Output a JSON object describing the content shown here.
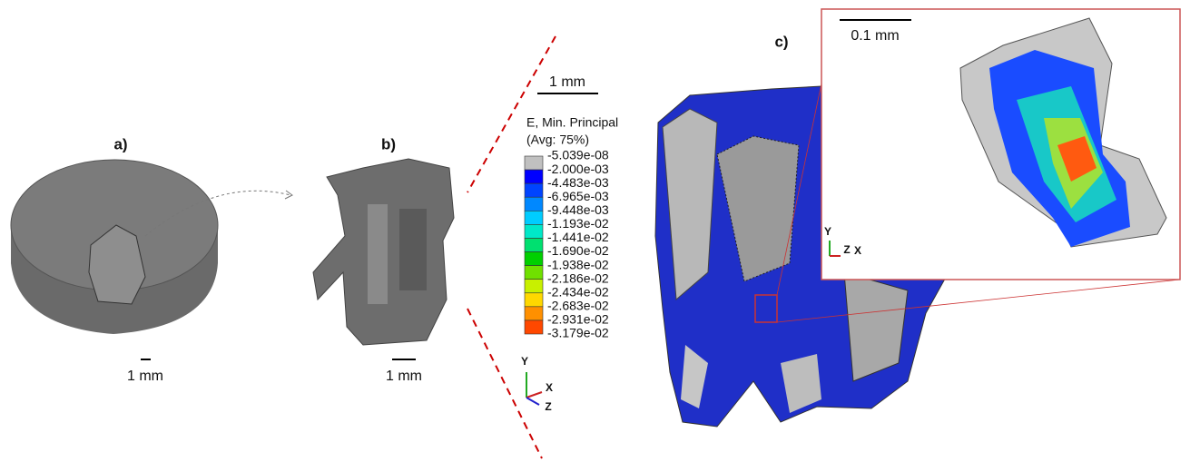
{
  "panels": {
    "a": {
      "label": "a)",
      "scale": "1 mm"
    },
    "b": {
      "label": "b)",
      "scale": "1 mm"
    },
    "c": {
      "label": "c)",
      "scale": "1 mm",
      "inset_scale": "0.1 mm"
    }
  },
  "legend": {
    "title": "E, Min. Principal",
    "subtitle": "(Avg: 75%)",
    "levels": [
      "-5.039e-08",
      "-2.000e-03",
      "-4.483e-03",
      "-6.965e-03",
      "-9.448e-03",
      "-1.193e-02",
      "-1.441e-02",
      "-1.690e-02",
      "-1.938e-02",
      "-2.186e-02",
      "-2.434e-02",
      "-2.683e-02",
      "-2.931e-02",
      "-3.179e-02"
    ],
    "colors": [
      "#c0c0c0",
      "#0000ff",
      "#0044ff",
      "#0088ff",
      "#00ccff",
      "#00e8c8",
      "#00e070",
      "#00d000",
      "#70e000",
      "#c8f000",
      "#ffd800",
      "#ff9000",
      "#ff4800",
      "#ff0000"
    ]
  },
  "triads": [
    {
      "y": "Y",
      "x": "X",
      "z": "Z"
    },
    {
      "y": "Y",
      "z": "Z",
      "x": "X"
    }
  ]
}
